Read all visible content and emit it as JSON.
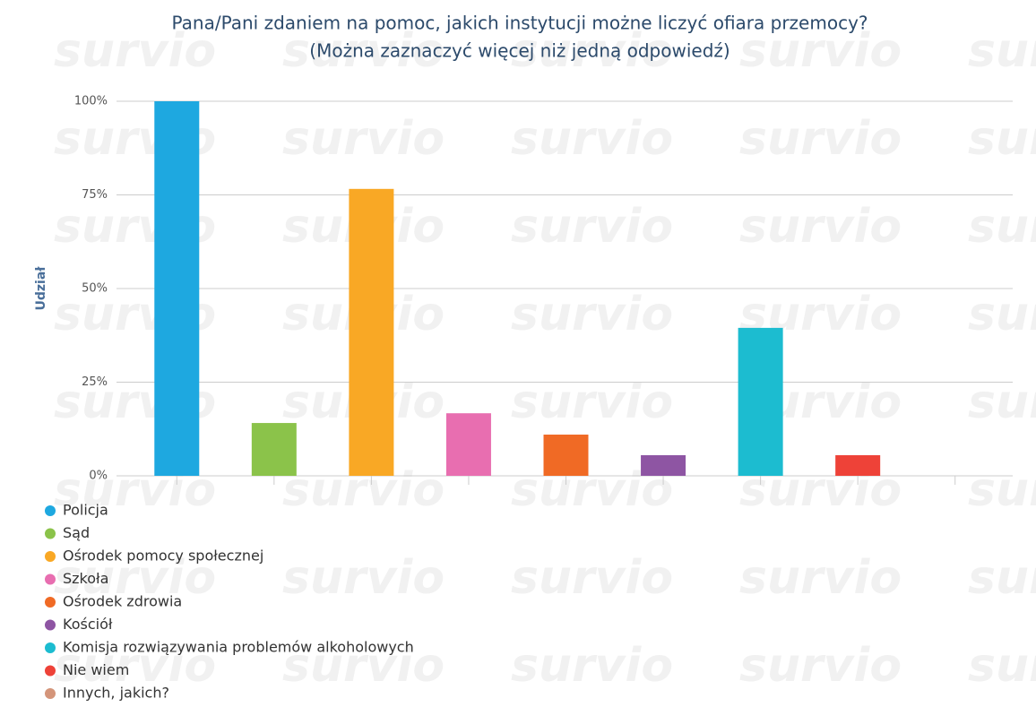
{
  "chart_data": {
    "type": "bar",
    "watermark": "survio",
    "title": "Pana/Pani zdaniem na pomoc, jakich instytucji możne liczyć ofiara przemocy?",
    "subtitle": "(Można zaznaczyć więcej niż jedną odpowiedź)",
    "y_label": "Udział",
    "categories": [
      "Policja",
      "Sąd",
      "Ośrodek pomocy społecznej",
      "Szkoła",
      "Ośrodek zdrowia",
      "Kościół",
      "Komisja rozwiązywania problemów alkoholowych",
      "Nie wiem",
      "Innych, jakich?"
    ],
    "values": [
      100,
      14.1,
      76.6,
      16.7,
      11,
      5.5,
      39.5,
      5.5,
      0
    ],
    "colors": [
      "#1ea8e0",
      "#8bc34a",
      "#f9a825",
      "#e86eb0",
      "#f06a25",
      "#8e55a3",
      "#1cbcd0",
      "#ee4238",
      "#d4957a"
    ],
    "ylim": [
      0,
      100
    ],
    "yticks": [
      {
        "value": 0,
        "label": "0%"
      },
      {
        "value": 25,
        "label": "25%"
      },
      {
        "value": 50,
        "label": "50%"
      },
      {
        "value": 75,
        "label": "75%"
      },
      {
        "value": 100,
        "label": "100%"
      }
    ],
    "grid": true
  }
}
